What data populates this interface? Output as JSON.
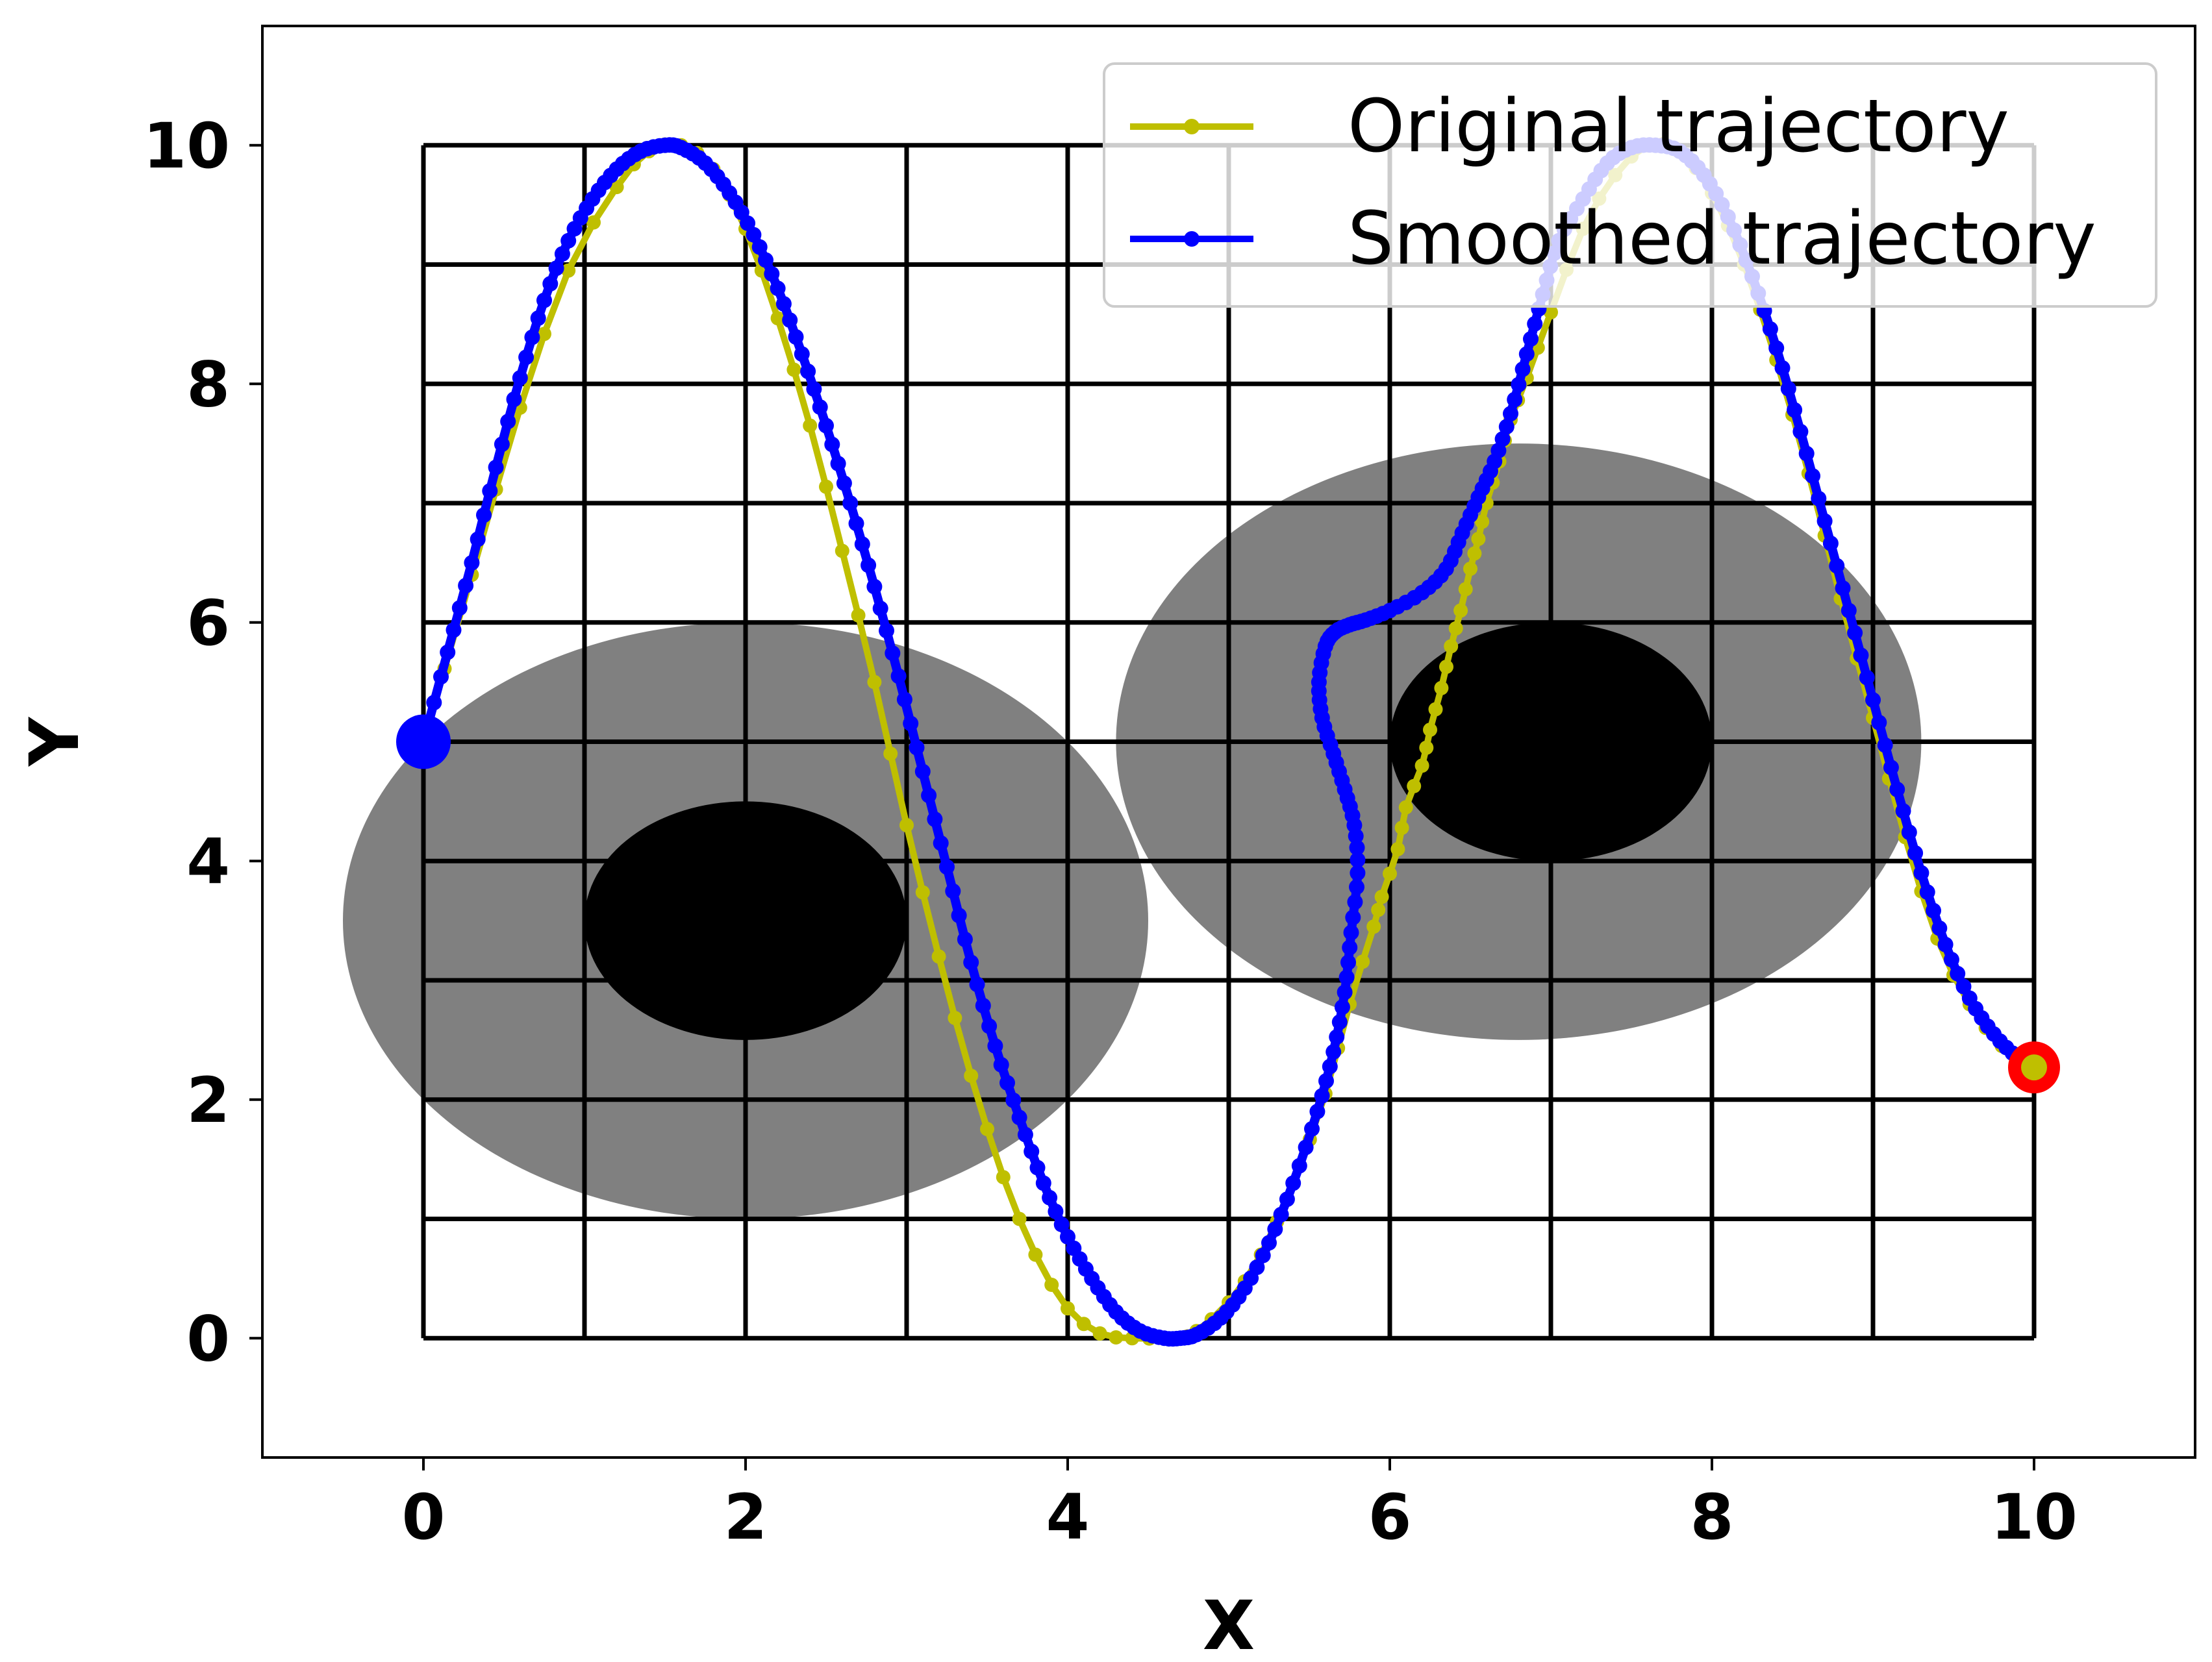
{
  "chart_data": {
    "type": "line",
    "xlabel": "X",
    "ylabel": "Y",
    "xlim": [
      -1,
      11
    ],
    "ylim": [
      -1,
      11
    ],
    "xticks": [
      0,
      2,
      4,
      6,
      8,
      10
    ],
    "yticks": [
      0,
      2,
      4,
      6,
      8,
      10
    ],
    "grid": {
      "x_lines": [
        0,
        1,
        2,
        3,
        4,
        5,
        6,
        7,
        8,
        9,
        10
      ],
      "y_lines": [
        0,
        1,
        2,
        3,
        4,
        5,
        6,
        7,
        8,
        9,
        10
      ],
      "color": "#000000"
    },
    "obstacles": [
      {
        "name": "obstacle-1-inflated",
        "cx": 2,
        "cy": 3.5,
        "rx": 2.5,
        "ry": 2.5,
        "color": "#808080"
      },
      {
        "name": "obstacle-1",
        "cx": 2,
        "cy": 3.5,
        "rx": 1.0,
        "ry": 1.0,
        "color": "#000000"
      },
      {
        "name": "obstacle-2-inflated",
        "cx": 6.8,
        "cy": 5.0,
        "rx": 2.5,
        "ry": 2.5,
        "color": "#808080"
      },
      {
        "name": "obstacle-2",
        "cx": 7.0,
        "cy": 5.0,
        "rx": 1.0,
        "ry": 1.0,
        "color": "#000000"
      }
    ],
    "start": {
      "x": 0,
      "y": 5,
      "color": "#0000ff"
    },
    "goal": {
      "x": 10,
      "y": 2.27,
      "color": "#ff0000"
    },
    "legend_position": "top-right",
    "series": [
      {
        "name": "Original trajectory",
        "color": "#bfbf00",
        "x": [
          0,
          0.3,
          0.6,
          0.9,
          1.2,
          1.4,
          1.6,
          1.8,
          2.0,
          2.2,
          2.4,
          2.6,
          2.8,
          3.0,
          3.2,
          3.4,
          3.6,
          3.8,
          4.0,
          4.2,
          4.4,
          4.6,
          4.7,
          4.8,
          5.0,
          5.2,
          5.4,
          5.6,
          5.75,
          5.9,
          5.95,
          6.05,
          6.1,
          6.2,
          6.25,
          6.32,
          6.38,
          6.44,
          6.5,
          6.55,
          6.6,
          6.68,
          6.75,
          6.85,
          7.0,
          7.2,
          7.4,
          7.6,
          7.8,
          8.0,
          8.2,
          8.4,
          8.6,
          8.8,
          9.0,
          9.2,
          9.4,
          9.6,
          9.8,
          10.0
        ],
        "y": [
          5.0,
          6.4,
          7.8,
          8.95,
          9.65,
          9.95,
          10.0,
          9.8,
          9.3,
          8.55,
          7.65,
          6.6,
          5.5,
          4.3,
          3.2,
          2.2,
          1.35,
          0.7,
          0.25,
          0.04,
          0.0,
          0.0,
          0.0,
          0.06,
          0.3,
          0.7,
          1.3,
          2.05,
          2.8,
          3.45,
          3.7,
          4.1,
          4.45,
          4.8,
          5.1,
          5.45,
          5.8,
          6.1,
          6.45,
          6.7,
          7.0,
          7.35,
          7.7,
          8.05,
          8.6,
          9.3,
          9.75,
          10.0,
          9.95,
          9.6,
          9.0,
          8.2,
          7.25,
          6.2,
          5.2,
          4.2,
          3.35,
          2.8,
          2.45,
          2.27
        ]
      },
      {
        "name": "Smoothed trajectory",
        "color": "#0000ff",
        "x": [
          0,
          0.15,
          0.3,
          0.45,
          0.6,
          0.75,
          0.9,
          1.05,
          1.2,
          1.35,
          1.5,
          1.6,
          1.75,
          1.9,
          2.05,
          2.2,
          2.35,
          2.5,
          2.65,
          2.8,
          2.95,
          3.1,
          3.25,
          3.4,
          3.55,
          3.7,
          3.85,
          4.0,
          4.15,
          4.3,
          4.45,
          4.6,
          4.7,
          4.8,
          4.95,
          5.1,
          5.25,
          5.4,
          5.55,
          5.65,
          5.72,
          5.76,
          5.8,
          5.78,
          5.72,
          5.65,
          5.58,
          5.56,
          5.6,
          5.66,
          5.75,
          5.85,
          6.0,
          6.2,
          6.35,
          6.45,
          6.55,
          6.65,
          6.75,
          6.85,
          6.95,
          7.05,
          7.2,
          7.35,
          7.5,
          7.65,
          7.8,
          7.95,
          8.1,
          8.25,
          8.4,
          8.55,
          8.7,
          8.85,
          9.0,
          9.15,
          9.3,
          9.45,
          9.6,
          9.75,
          9.9,
          10.0
        ],
        "y": [
          5.0,
          5.75,
          6.5,
          7.3,
          8.05,
          8.7,
          9.2,
          9.55,
          9.8,
          9.95,
          10.0,
          9.98,
          9.85,
          9.6,
          9.25,
          8.8,
          8.25,
          7.65,
          7.0,
          6.3,
          5.55,
          4.75,
          3.95,
          3.15,
          2.45,
          1.85,
          1.3,
          0.85,
          0.5,
          0.22,
          0.06,
          0.0,
          0.0,
          0.03,
          0.17,
          0.42,
          0.8,
          1.3,
          1.9,
          2.4,
          2.9,
          3.4,
          3.9,
          4.3,
          4.6,
          4.9,
          5.2,
          5.5,
          5.8,
          5.92,
          5.98,
          6.02,
          6.1,
          6.25,
          6.45,
          6.75,
          7.05,
          7.35,
          7.75,
          8.25,
          8.75,
          9.2,
          9.55,
          9.85,
          9.98,
          10.0,
          9.95,
          9.75,
          9.4,
          8.9,
          8.3,
          7.6,
          6.85,
          6.1,
          5.35,
          4.6,
          3.9,
          3.3,
          2.85,
          2.55,
          2.35,
          2.27
        ]
      }
    ]
  }
}
